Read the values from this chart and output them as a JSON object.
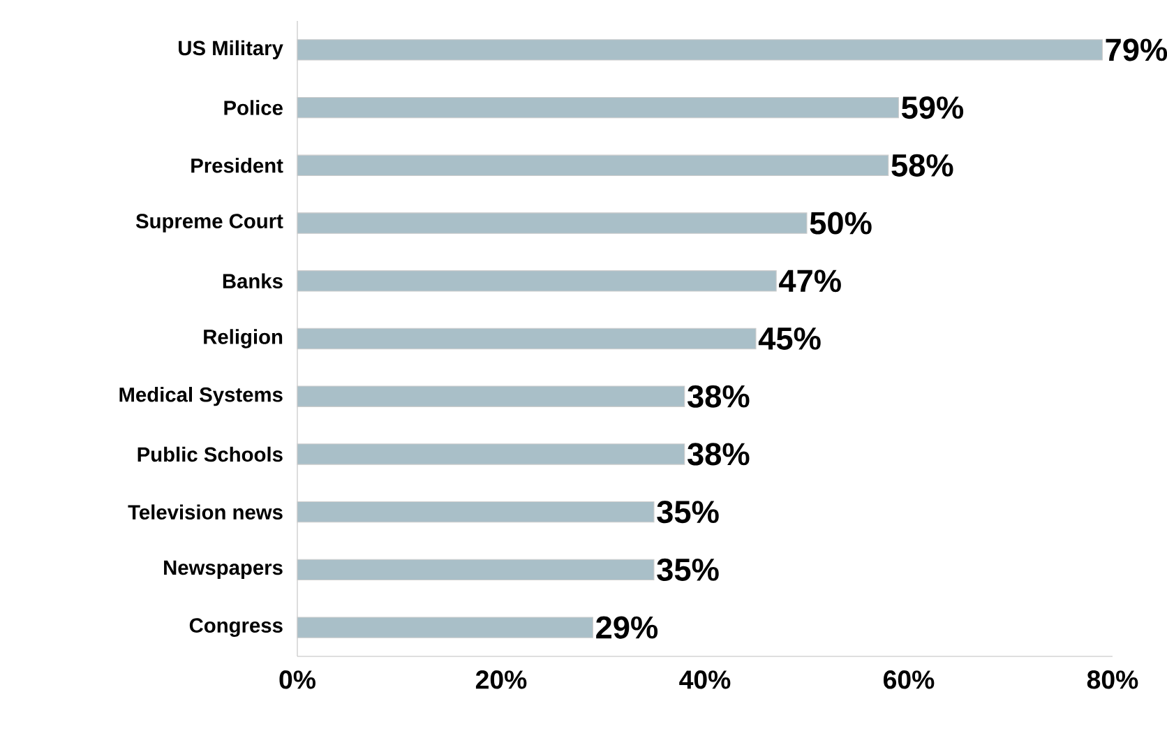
{
  "chart_data": {
    "type": "bar",
    "orientation": "horizontal",
    "categories": [
      "US Military",
      "Police",
      "President",
      "Supreme Court",
      "Banks",
      "Religion",
      "Medical Systems",
      "Public Schools",
      "Television news",
      "Newspapers",
      "Congress"
    ],
    "values": [
      79,
      59,
      58,
      50,
      47,
      45,
      38,
      38,
      35,
      35,
      29
    ],
    "value_labels": [
      "79%",
      "59%",
      "58%",
      "50%",
      "47%",
      "45%",
      "38%",
      "38%",
      "35%",
      "35%",
      "29%"
    ],
    "color": "#a9bfc8",
    "xlim": [
      0,
      80
    ],
    "xticks": [
      {
        "value": 0,
        "label": "0%"
      },
      {
        "value": 20,
        "label": "20%"
      },
      {
        "value": 40,
        "label": "40%"
      },
      {
        "value": 60,
        "label": "60%"
      },
      {
        "value": 80,
        "label": "80%"
      }
    ],
    "grid": false
  }
}
